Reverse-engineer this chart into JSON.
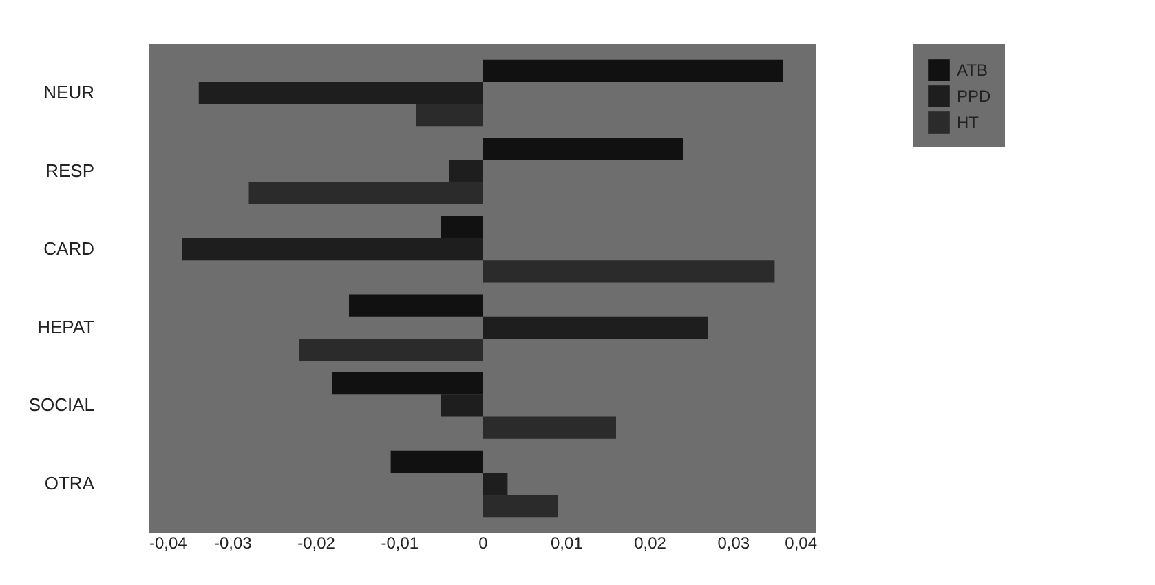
{
  "chart_data": {
    "type": "bar",
    "orientation": "horizontal",
    "categories": [
      "NEUR",
      "RESP",
      "CARD",
      "HEPAT",
      "SOCIAL",
      "OTRA"
    ],
    "series": [
      {
        "name": "ATB",
        "color": "#111111",
        "values": [
          0.036,
          0.024,
          -0.005,
          -0.016,
          -0.018,
          -0.011
        ]
      },
      {
        "name": "PPD",
        "color": "#1e1e1e",
        "values": [
          -0.034,
          -0.004,
          -0.036,
          0.027,
          -0.005,
          0.003
        ]
      },
      {
        "name": "HT",
        "color": "#2b2b2b",
        "values": [
          -0.008,
          -0.028,
          0.035,
          -0.022,
          0.016,
          0.009
        ]
      }
    ],
    "xlim": [
      -0.04,
      0.04
    ],
    "xticks": [
      {
        "value": -0.04,
        "label": "-0,04"
      },
      {
        "value": -0.03,
        "label": "-0,03"
      },
      {
        "value": -0.02,
        "label": "-0,02"
      },
      {
        "value": -0.01,
        "label": "-0,01"
      },
      0,
      {
        "value": 0.01,
        "label": "0,01"
      },
      {
        "value": 0.02,
        "label": "0,02"
      },
      {
        "value": 0.03,
        "label": "0,03"
      },
      {
        "value": 0.04,
        "label": "0,04"
      }
    ],
    "grid": false,
    "legend": "right"
  }
}
